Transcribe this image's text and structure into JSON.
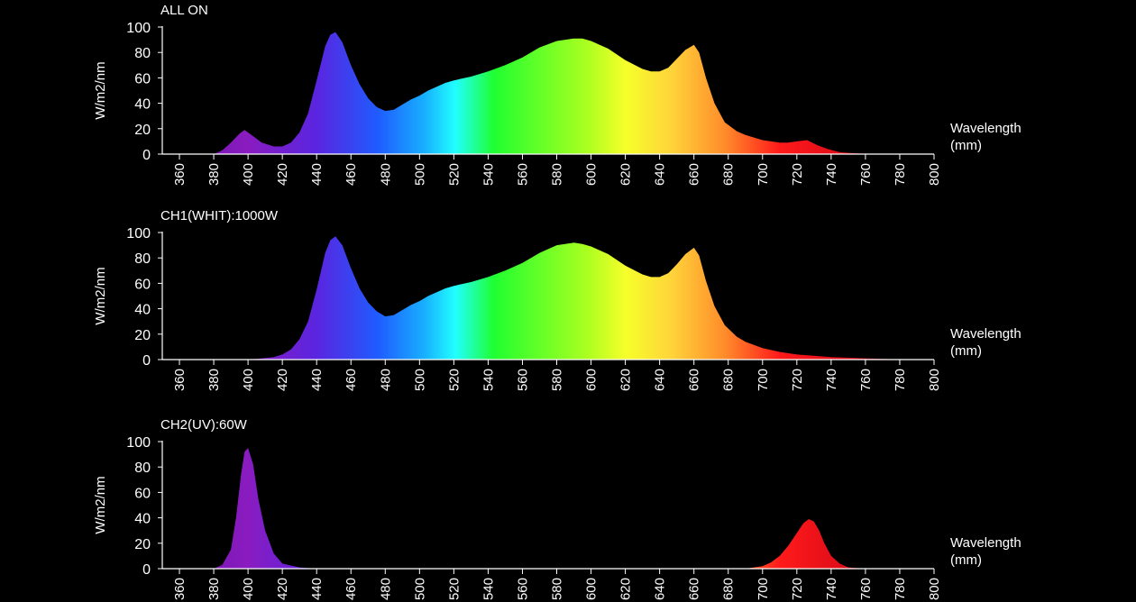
{
  "chart_data": [
    {
      "type": "area",
      "title": "ALL ON",
      "ylabel": "W/m2/nm",
      "xlabel_line1": "Wavelength",
      "xlabel_line2": "(mm)",
      "xlim": [
        350,
        800
      ],
      "ylim": [
        0,
        100
      ],
      "x_ticks": [
        360,
        380,
        400,
        420,
        440,
        460,
        480,
        500,
        520,
        540,
        560,
        580,
        600,
        620,
        640,
        660,
        680,
        700,
        720,
        740,
        760,
        780,
        800
      ],
      "y_ticks": [
        0,
        20,
        40,
        60,
        80,
        100
      ],
      "grid": false,
      "series": [
        {
          "x": [
            380,
            385,
            390,
            395,
            398,
            402,
            408,
            415,
            420,
            425,
            430,
            435,
            440,
            445,
            448,
            451,
            455,
            460,
            465,
            470,
            475,
            480,
            485,
            490,
            495,
            500,
            505,
            510,
            515,
            520,
            530,
            540,
            550,
            560,
            570,
            580,
            590,
            595,
            600,
            610,
            620,
            630,
            635,
            640,
            645,
            650,
            655,
            660,
            663,
            667,
            672,
            678,
            685,
            690,
            700,
            710,
            715,
            720,
            726,
            732,
            738,
            745,
            755,
            765,
            780,
            800
          ],
          "y": [
            0,
            3,
            9,
            16,
            19,
            15,
            9,
            6,
            6,
            9,
            17,
            32,
            58,
            85,
            94,
            96,
            88,
            70,
            55,
            44,
            37,
            34,
            35,
            39,
            43,
            46,
            50,
            53,
            56,
            58,
            61,
            65,
            70,
            76,
            84,
            89,
            91,
            91,
            89,
            83,
            74,
            67,
            65,
            65,
            68,
            75,
            82,
            86,
            80,
            60,
            40,
            25,
            18,
            15,
            11,
            9,
            9,
            10,
            11,
            7,
            4,
            1.5,
            0.5,
            0,
            0,
            0
          ]
        }
      ]
    },
    {
      "type": "area",
      "title": "CH1(WHIT):1000W",
      "ylabel": "W/m2/nm",
      "xlabel_line1": "Wavelength",
      "xlabel_line2": "(mm)",
      "xlim": [
        350,
        800
      ],
      "ylim": [
        0,
        100
      ],
      "x_ticks": [
        360,
        380,
        400,
        420,
        440,
        460,
        480,
        500,
        520,
        540,
        560,
        580,
        600,
        620,
        640,
        660,
        680,
        700,
        720,
        740,
        760,
        780,
        800
      ],
      "y_ticks": [
        0,
        20,
        40,
        60,
        80,
        100
      ],
      "grid": false,
      "series": [
        {
          "x": [
            395,
            405,
            415,
            420,
            425,
            430,
            435,
            440,
            445,
            448,
            451,
            455,
            460,
            465,
            470,
            475,
            480,
            485,
            490,
            495,
            500,
            505,
            510,
            515,
            520,
            530,
            540,
            550,
            560,
            570,
            580,
            590,
            595,
            600,
            610,
            620,
            630,
            635,
            640,
            645,
            650,
            655,
            660,
            663,
            667,
            672,
            678,
            685,
            690,
            700,
            710,
            720,
            730,
            740,
            750,
            760,
            770,
            780,
            790
          ],
          "y": [
            0,
            0.5,
            2,
            4,
            8,
            16,
            30,
            55,
            84,
            94,
            97,
            90,
            72,
            56,
            45,
            38,
            34,
            35,
            39,
            43,
            46,
            50,
            53,
            56,
            58,
            61,
            65,
            70,
            76,
            84,
            90,
            92,
            91,
            89,
            83,
            74,
            67,
            65,
            65,
            68,
            75,
            83,
            88,
            82,
            62,
            42,
            27,
            18,
            14,
            9,
            6,
            4,
            3,
            2,
            1.5,
            1,
            0.5,
            0.2,
            0
          ]
        }
      ]
    },
    {
      "type": "area",
      "title": "CH2(UV):60W",
      "ylabel": "W/m2/nm",
      "xlabel_line1": "Wavelength",
      "xlabel_line2": "(mm)",
      "xlim": [
        350,
        800
      ],
      "ylim": [
        0,
        100
      ],
      "x_ticks": [
        360,
        380,
        400,
        420,
        440,
        460,
        480,
        500,
        520,
        540,
        560,
        580,
        600,
        620,
        640,
        660,
        680,
        700,
        720,
        740,
        760,
        780,
        800
      ],
      "y_ticks": [
        0,
        20,
        40,
        60,
        80,
        100
      ],
      "grid": false,
      "series": [
        {
          "x": [
            380,
            385,
            390,
            393,
            396,
            398,
            400,
            403,
            406,
            410,
            415,
            420,
            430,
            440,
            690,
            700,
            705,
            710,
            715,
            720,
            724,
            727,
            730,
            733,
            736,
            740,
            745,
            750,
            760
          ],
          "y": [
            0,
            3,
            15,
            40,
            75,
            92,
            95,
            82,
            55,
            30,
            12,
            4,
            1,
            0,
            0,
            2,
            5,
            10,
            18,
            28,
            36,
            39,
            37,
            30,
            20,
            10,
            4,
            1,
            0
          ]
        }
      ]
    }
  ],
  "colors": {
    "background": "#000000",
    "axis": "#ffffff",
    "text": "#ffffff"
  }
}
